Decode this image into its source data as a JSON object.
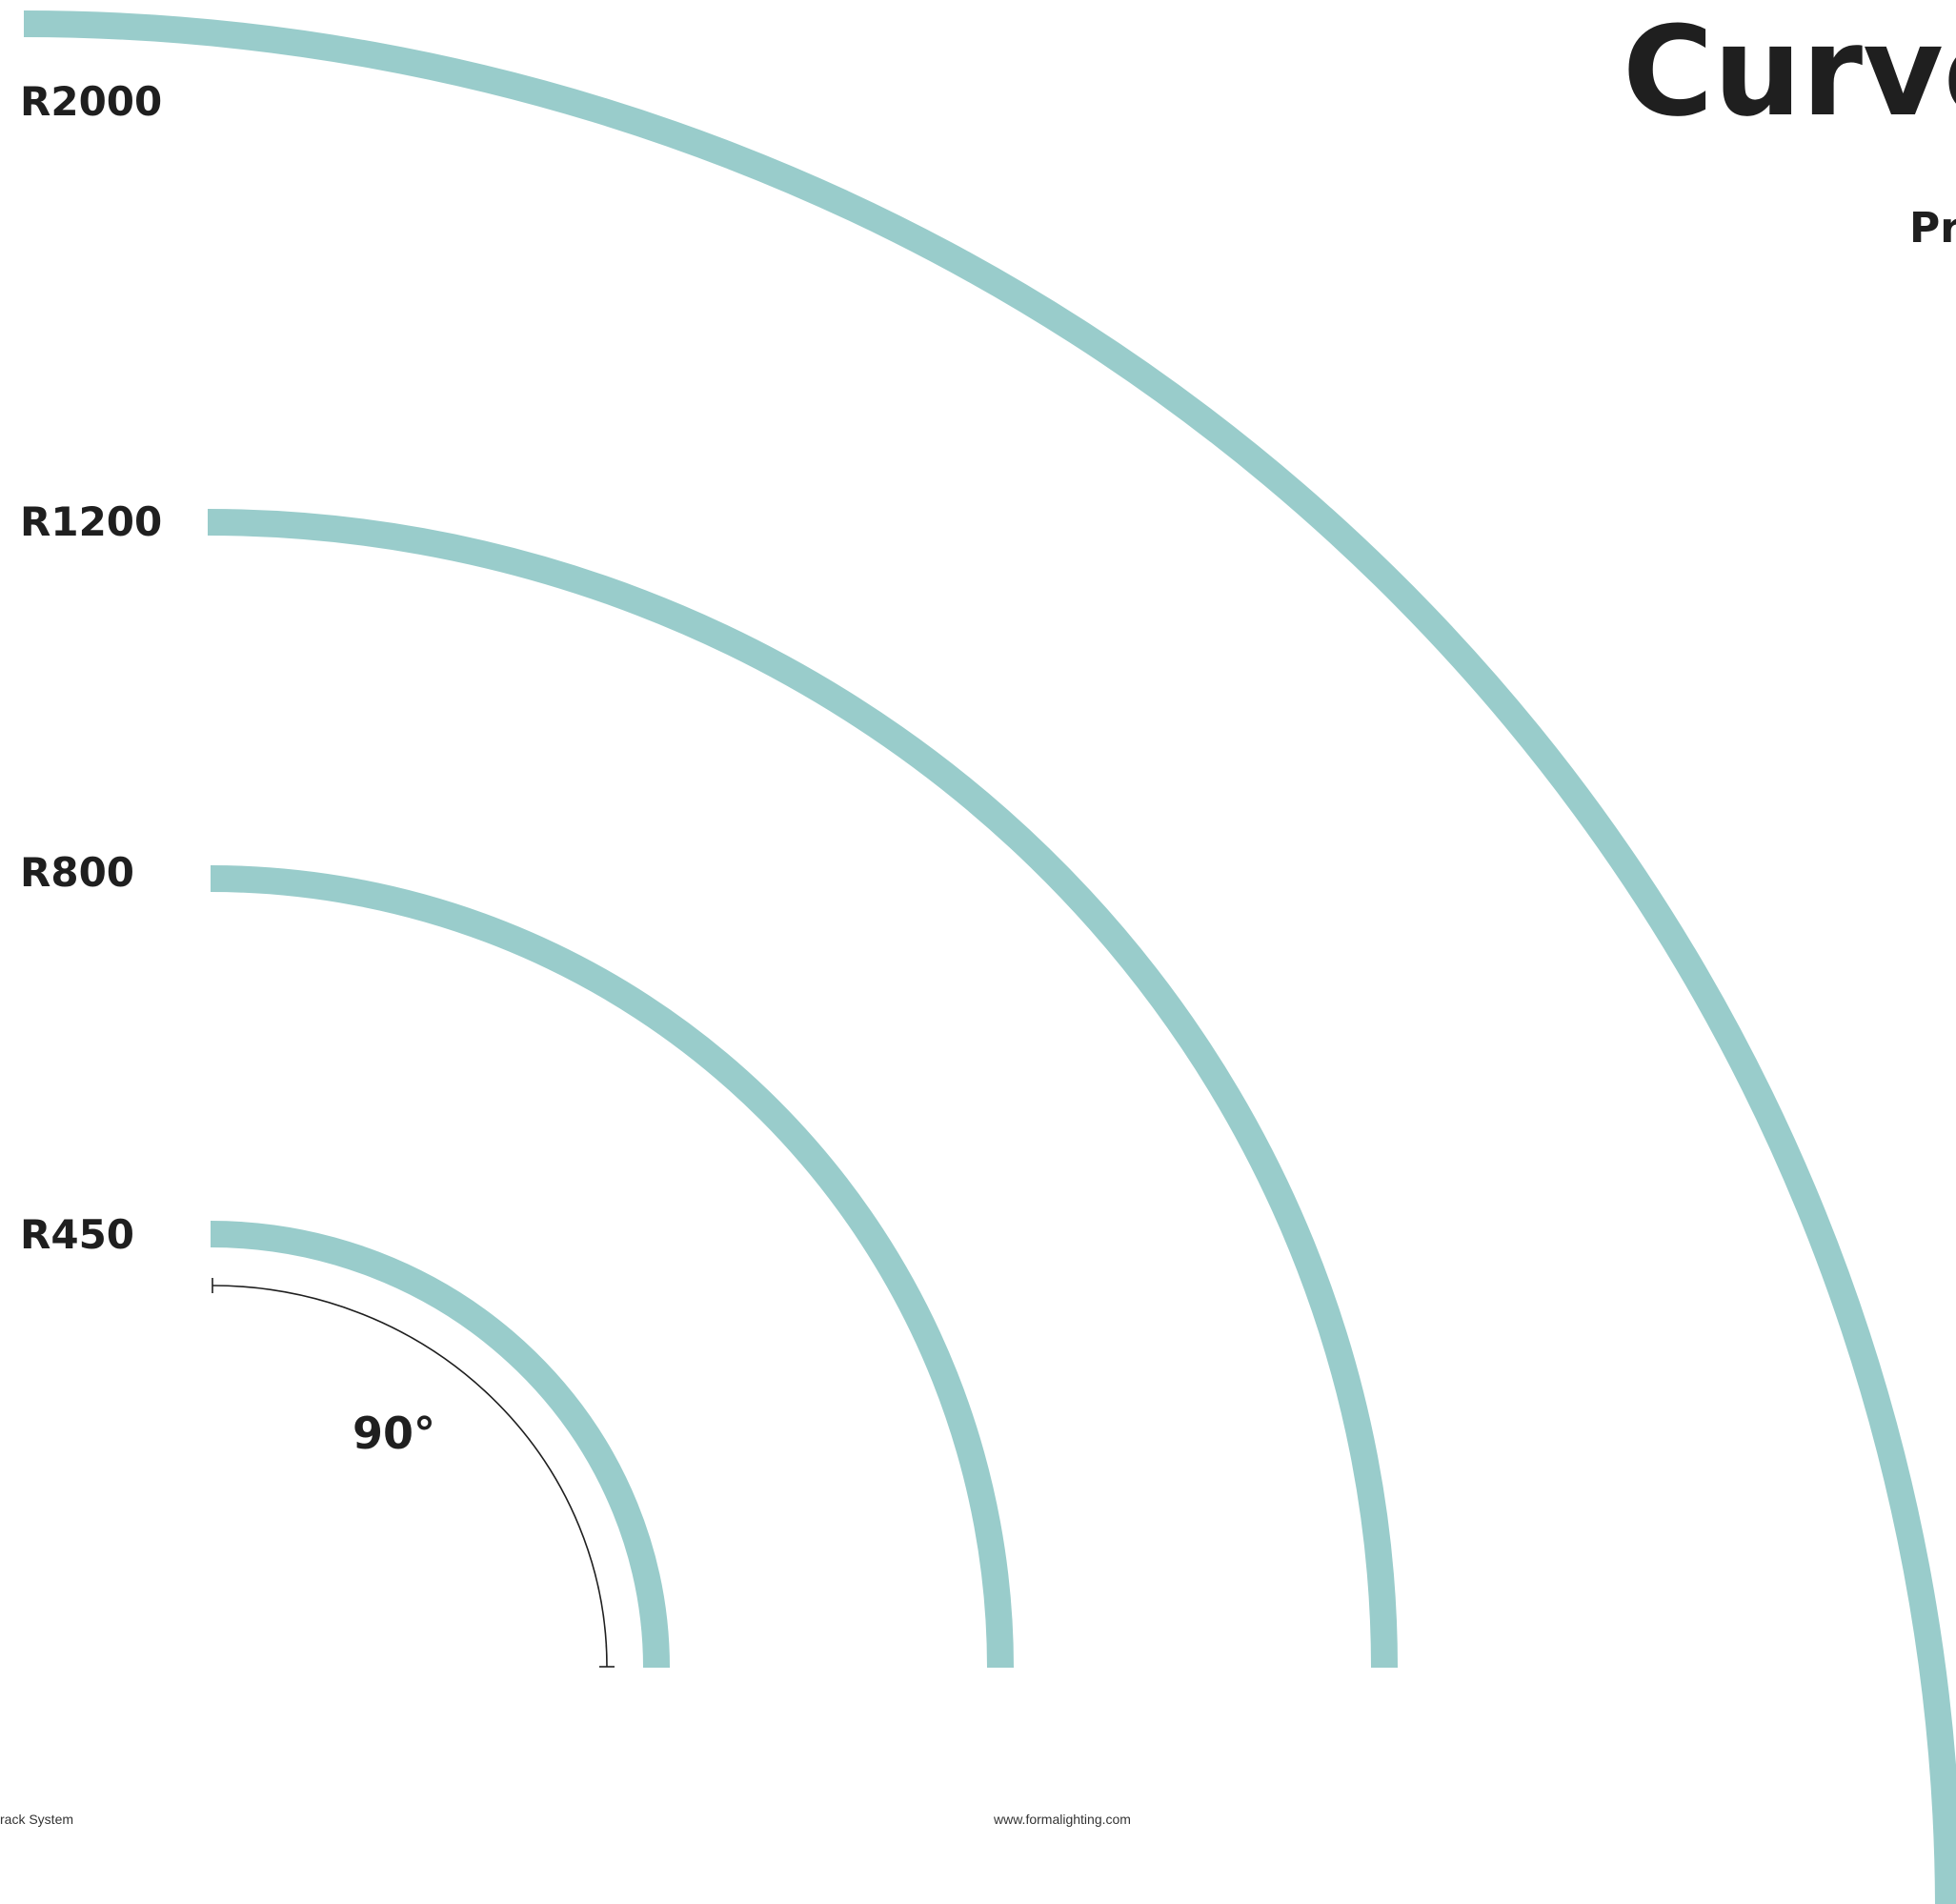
{
  "title": "Curve",
  "subtitle": "Pr",
  "arc_color": "#99cccb",
  "dimension_color": "#1f1f1f",
  "curves": [
    {
      "label": "R2000",
      "radius": 2000
    },
    {
      "label": "R1200",
      "radius": 1200
    },
    {
      "label": "R800",
      "radius": 800
    },
    {
      "label": "R450",
      "radius": 450
    }
  ],
  "angle": {
    "label": "90°",
    "degrees": 90
  },
  "footer": {
    "left": "rack System",
    "center": "www.formalighting.com"
  }
}
